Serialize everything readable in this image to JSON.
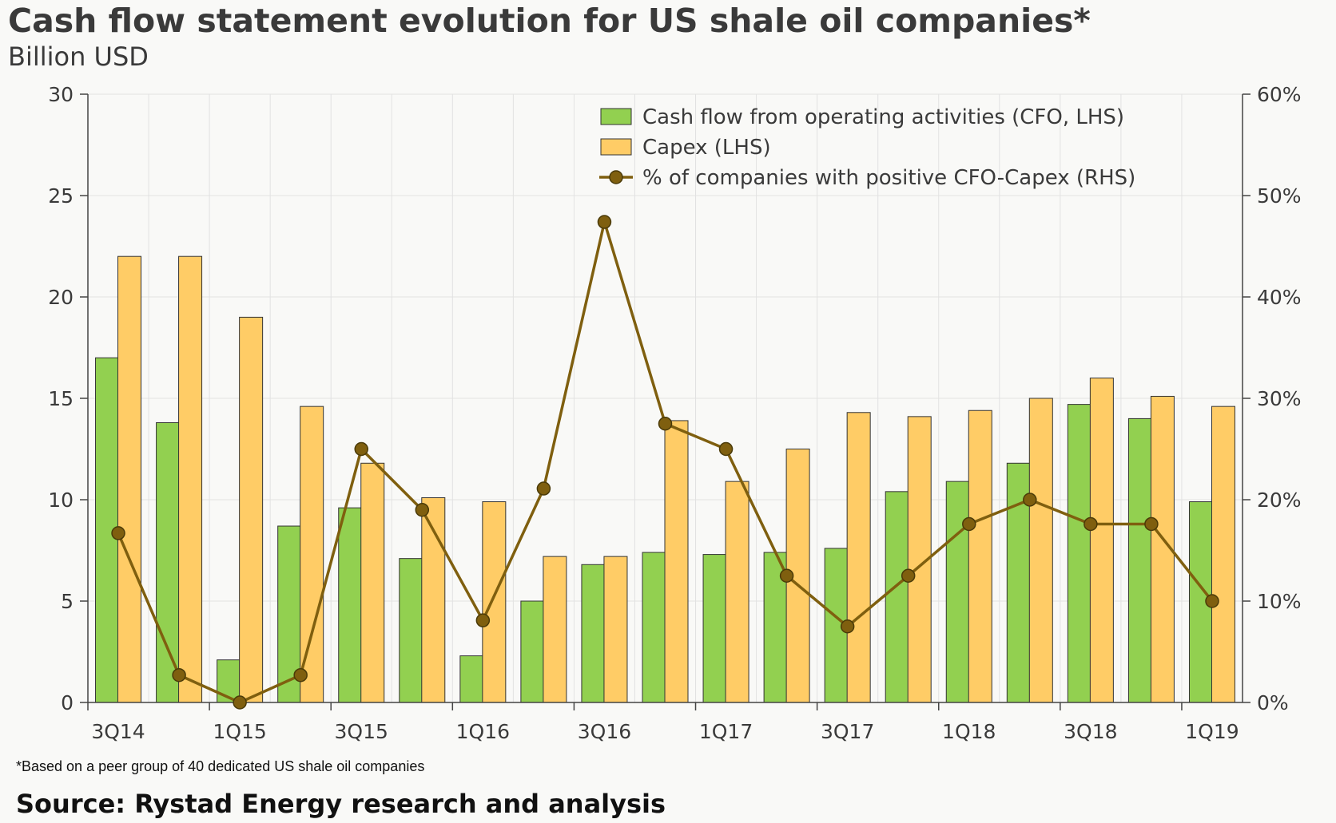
{
  "title": "Cash flow statement evolution for US shale oil companies*",
  "subtitle": "Billion USD",
  "footnote": "*Based on a peer group of 40 dedicated US shale oil companies",
  "source": "Source: Rystad Energy research and analysis",
  "chart_data": {
    "type": "bar",
    "combo": "bar+line",
    "categories": [
      "3Q14",
      "4Q14",
      "1Q15",
      "2Q15",
      "3Q15",
      "4Q15",
      "1Q16",
      "2Q16",
      "3Q16",
      "4Q16",
      "1Q17",
      "2Q17",
      "3Q17",
      "4Q17",
      "1Q18",
      "2Q18",
      "3Q18",
      "4Q18",
      "1Q19"
    ],
    "x_tick_labels": [
      "3Q14",
      "1Q15",
      "3Q15",
      "1Q16",
      "3Q16",
      "1Q17",
      "3Q17",
      "1Q18",
      "3Q18",
      "1Q19"
    ],
    "series": [
      {
        "name": "Cash flow from operating activities (CFO, LHS)",
        "type": "bar",
        "axis": "left",
        "color": "#92d050",
        "values": [
          17.0,
          13.8,
          2.1,
          8.7,
          9.6,
          7.1,
          2.3,
          5.0,
          6.8,
          7.4,
          7.3,
          7.4,
          7.6,
          10.4,
          10.9,
          11.8,
          14.7,
          14.0,
          9.9
        ]
      },
      {
        "name": "Capex (LHS)",
        "type": "bar",
        "axis": "left",
        "color": "#ffcc66",
        "values": [
          22.0,
          22.0,
          19.0,
          14.6,
          11.8,
          10.1,
          9.9,
          7.2,
          7.2,
          13.9,
          10.9,
          12.5,
          14.3,
          14.1,
          14.4,
          15.0,
          16.0,
          15.1,
          14.6
        ]
      },
      {
        "name": "% of companies with positive CFO-Capex (RHS)",
        "type": "line",
        "axis": "right",
        "color": "#7f5f0f",
        "values": [
          16.7,
          2.7,
          0.0,
          2.7,
          25.0,
          19.0,
          8.1,
          21.1,
          47.4,
          27.5,
          25.0,
          12.5,
          7.5,
          12.5,
          17.6,
          20.0,
          17.6,
          17.6,
          10.0
        ]
      }
    ],
    "left_axis": {
      "min": 0,
      "max": 30,
      "ticks": [
        "0",
        "5",
        "10",
        "15",
        "20",
        "25",
        "30"
      ]
    },
    "right_axis": {
      "min": 0,
      "max": 60,
      "ticks": [
        "0%",
        "10%",
        "20%",
        "30%",
        "40%",
        "50%",
        "60%"
      ]
    },
    "grid": true,
    "legend_position": "top-right"
  }
}
